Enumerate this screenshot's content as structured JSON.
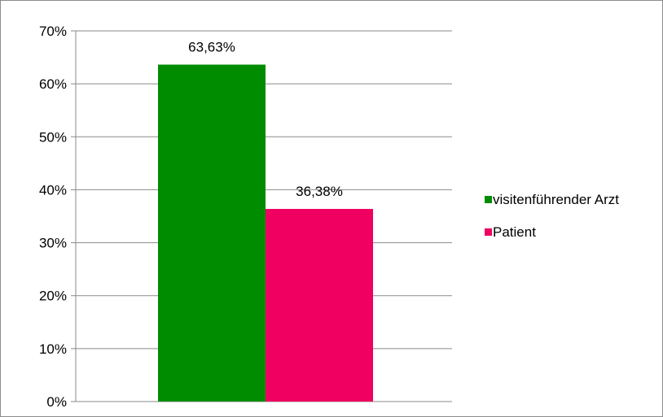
{
  "chart_data": {
    "type": "bar",
    "categories": [
      ""
    ],
    "series": [
      {
        "name": "visitenführender Arzt",
        "values": [
          63.63
        ],
        "label": "63,63%",
        "color": "#008c00"
      },
      {
        "name": "Patient",
        "values": [
          36.38
        ],
        "label": "36,38%",
        "color": "#f00060"
      }
    ],
    "y_ticks": [
      "0%",
      "10%",
      "20%",
      "30%",
      "40%",
      "50%",
      "60%",
      "70%"
    ],
    "ylim": [
      0,
      70
    ],
    "y_tick_step": 10,
    "grid": true,
    "legend_position": "right",
    "title": "",
    "xlabel": "",
    "ylabel": ""
  }
}
